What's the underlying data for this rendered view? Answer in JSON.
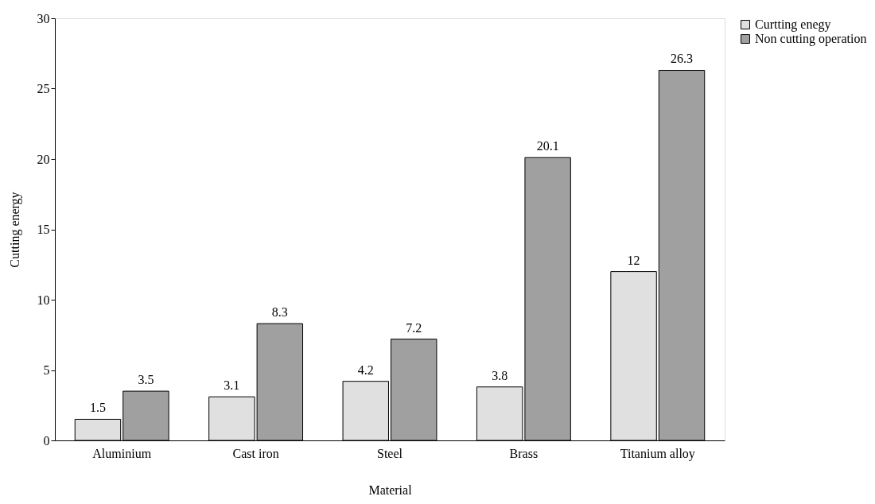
{
  "chart_data": {
    "type": "bar",
    "xlabel": "Material",
    "ylabel": "Cutting energy",
    "categories": [
      "Aluminium",
      "Cast iron",
      "Steel",
      "Brass",
      "Titanium alloy"
    ],
    "series": [
      {
        "name": "Curtting enegy",
        "color": "#e0e0e0",
        "values": [
          1.5,
          3.1,
          4.2,
          3.8,
          12
        ]
      },
      {
        "name": "Non cutting operation",
        "color": "#a0a0a0",
        "values": [
          3.5,
          8.3,
          7.2,
          20.1,
          26.3
        ]
      }
    ],
    "ylim": [
      0,
      30
    ],
    "yticks": [
      0,
      5,
      10,
      15,
      20,
      25,
      30
    ],
    "grid": false,
    "legend": "top right",
    "data_labels": true
  }
}
